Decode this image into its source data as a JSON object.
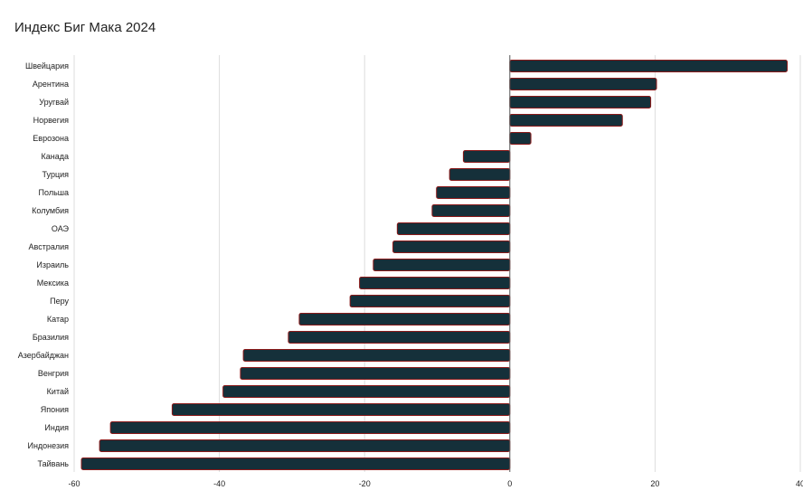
{
  "chart_data": {
    "type": "bar",
    "orientation": "horizontal",
    "title": "Индекс Биг Мака 2024",
    "xlabel": "",
    "ylabel": "",
    "xlim": [
      -60,
      40
    ],
    "xticks": [
      -60,
      -40,
      -20,
      0,
      20,
      40
    ],
    "grid": true,
    "legend": "none",
    "colors": {
      "bar_fill": "#15303a",
      "bar_stroke": "#8b1a1a",
      "grid": "#dddddd",
      "axis": "#555555"
    },
    "categories": [
      "Швейцария",
      "Арентина",
      "Уругвай",
      "Норвегия",
      "Еврозона",
      "Канада",
      "Турция",
      "Польша",
      "Колумбия",
      "ОАЭ",
      "Австралия",
      "Израиль",
      "Мексика",
      "Перу",
      "Катар",
      "Бразилия",
      "Азербайджан",
      "Венгрия",
      "Китай",
      "Япония",
      "Индия",
      "Индонезия",
      "Тайвань"
    ],
    "values": [
      38.2,
      20.2,
      19.4,
      15.5,
      2.9,
      -6.4,
      -8.3,
      -10.1,
      -10.7,
      -15.5,
      -16.1,
      -18.8,
      -20.7,
      -22.0,
      -29.0,
      -30.5,
      -36.7,
      -37.1,
      -39.5,
      -46.5,
      -55.0,
      -56.5,
      -59.0
    ]
  }
}
